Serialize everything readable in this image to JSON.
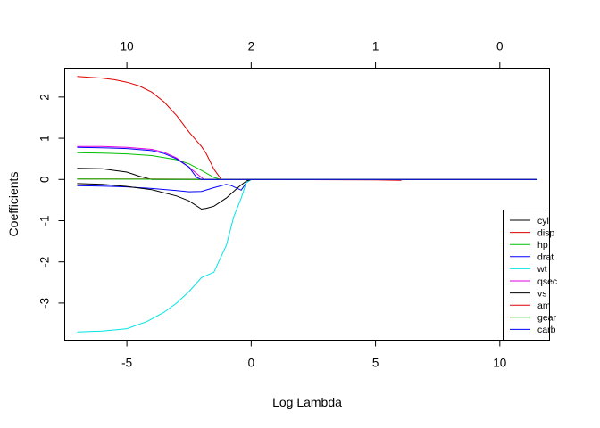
{
  "chart_data": {
    "type": "line",
    "xlabel": "Log Lambda",
    "ylabel": "Coefficients",
    "xlim": [
      -7.5,
      12
    ],
    "ylim": [
      -3.9,
      2.7
    ],
    "x_ticks": [
      -5,
      0,
      5,
      10
    ],
    "y_ticks": [
      -3,
      -2,
      -1,
      0,
      1,
      2
    ],
    "top_axis": {
      "ticks": [
        {
          "x": -5,
          "label": "10"
        },
        {
          "x": 0,
          "label": "2"
        },
        {
          "x": 5,
          "label": "1"
        },
        {
          "x": 10,
          "label": "0"
        }
      ]
    },
    "grid": false,
    "legend": {
      "position": "bottom-right",
      "entries": [
        {
          "label": "cyl",
          "color": "#000000"
        },
        {
          "label": "disp",
          "color": "#DF0000"
        },
        {
          "label": "hp",
          "color": "#00C000"
        },
        {
          "label": "drat",
          "color": "#0000FF"
        },
        {
          "label": "wt",
          "color": "#00E5E5"
        },
        {
          "label": "qsec",
          "color": "#E000E0"
        },
        {
          "label": "vs",
          "color": "#000000"
        },
        {
          "label": "am",
          "color": "#DF0000"
        },
        {
          "label": "gear",
          "color": "#00C000"
        },
        {
          "label": "carb",
          "color": "#0000FF"
        }
      ]
    },
    "series": [
      {
        "color": "#000000",
        "points": [
          [
            -7,
            0.27
          ],
          [
            -6,
            0.26
          ],
          [
            -5,
            0.18
          ],
          [
            -4.5,
            0.08
          ],
          [
            -4,
            0
          ],
          [
            0,
            0
          ],
          [
            11.5,
            0
          ]
        ]
      },
      {
        "color": "#DF0000",
        "points": [
          [
            -7,
            2.5
          ],
          [
            -6.5,
            2.48
          ],
          [
            -6,
            2.46
          ],
          [
            -5.5,
            2.42
          ],
          [
            -5,
            2.36
          ],
          [
            -4.5,
            2.27
          ],
          [
            -4,
            2.12
          ],
          [
            -3.5,
            1.88
          ],
          [
            -3,
            1.55
          ],
          [
            -2.5,
            1.15
          ],
          [
            -2,
            0.8
          ],
          [
            -1.8,
            0.62
          ],
          [
            -1.5,
            0.25
          ],
          [
            -1.2,
            0
          ],
          [
            11.5,
            0
          ]
        ]
      },
      {
        "color": "#00C000",
        "points": [
          [
            -7,
            0.65
          ],
          [
            -6,
            0.64
          ],
          [
            -5,
            0.62
          ],
          [
            -4,
            0.58
          ],
          [
            -3,
            0.48
          ],
          [
            -2.5,
            0.38
          ],
          [
            -2,
            0.22
          ],
          [
            -1.5,
            0.05
          ],
          [
            -1.2,
            0
          ],
          [
            11.5,
            0
          ]
        ]
      },
      {
        "color": "#0000FF",
        "points": [
          [
            -7,
            -0.15
          ],
          [
            -6,
            -0.16
          ],
          [
            -5,
            -0.18
          ],
          [
            -4,
            -0.22
          ],
          [
            -3,
            -0.27
          ],
          [
            -2.5,
            -0.3
          ],
          [
            -2,
            -0.29
          ],
          [
            -1.5,
            -0.2
          ],
          [
            -1,
            -0.12
          ],
          [
            -0.8,
            -0.15
          ],
          [
            -0.4,
            -0.26
          ],
          [
            -0.2,
            -0.08
          ],
          [
            0,
            0
          ],
          [
            11.5,
            0
          ]
        ]
      },
      {
        "color": "#00E5E5",
        "points": [
          [
            -7,
            -3.7
          ],
          [
            -6,
            -3.68
          ],
          [
            -5,
            -3.62
          ],
          [
            -4.2,
            -3.45
          ],
          [
            -3.5,
            -3.22
          ],
          [
            -3,
            -3.0
          ],
          [
            -2.5,
            -2.72
          ],
          [
            -2,
            -2.38
          ],
          [
            -1.5,
            -2.25
          ],
          [
            -1,
            -1.6
          ],
          [
            -0.7,
            -0.9
          ],
          [
            -0.4,
            -0.45
          ],
          [
            -0.2,
            -0.08
          ],
          [
            0,
            0
          ],
          [
            11.5,
            0
          ]
        ]
      },
      {
        "color": "#E000E0",
        "points": [
          [
            -7,
            0.8
          ],
          [
            -6,
            0.8
          ],
          [
            -5,
            0.78
          ],
          [
            -4,
            0.73
          ],
          [
            -3.5,
            0.66
          ],
          [
            -3,
            0.52
          ],
          [
            -2.5,
            0.3
          ],
          [
            -2.1,
            0.1
          ],
          [
            -1.9,
            0
          ],
          [
            11.5,
            0
          ]
        ]
      },
      {
        "color": "#000000",
        "points": [
          [
            -7,
            -0.1
          ],
          [
            -6,
            -0.12
          ],
          [
            -5,
            -0.17
          ],
          [
            -4,
            -0.25
          ],
          [
            -3,
            -0.4
          ],
          [
            -2.5,
            -0.52
          ],
          [
            -2,
            -0.72
          ],
          [
            -1.8,
            -0.7
          ],
          [
            -1.5,
            -0.65
          ],
          [
            -1,
            -0.45
          ],
          [
            -0.5,
            -0.18
          ],
          [
            -0.2,
            -0.04
          ],
          [
            0,
            0
          ],
          [
            11.5,
            0
          ]
        ]
      },
      {
        "color": "#DF0000",
        "points": [
          [
            -7,
            0.01
          ],
          [
            -4,
            0.01
          ],
          [
            0,
            0
          ],
          [
            5,
            -0.01
          ],
          [
            6,
            -0.02
          ],
          [
            6.1,
            0
          ],
          [
            11.5,
            0
          ]
        ]
      },
      {
        "color": "#00C000",
        "points": [
          [
            -7,
            0.01
          ],
          [
            0,
            0
          ],
          [
            11.5,
            0
          ]
        ]
      },
      {
        "color": "#0000FF",
        "points": [
          [
            -7,
            0.78
          ],
          [
            -6,
            0.77
          ],
          [
            -5,
            0.75
          ],
          [
            -4,
            0.7
          ],
          [
            -3.5,
            0.63
          ],
          [
            -3,
            0.5
          ],
          [
            -2.5,
            0.3
          ],
          [
            -2.2,
            0.05
          ],
          [
            -2,
            0
          ],
          [
            11.5,
            0
          ]
        ]
      }
    ]
  }
}
